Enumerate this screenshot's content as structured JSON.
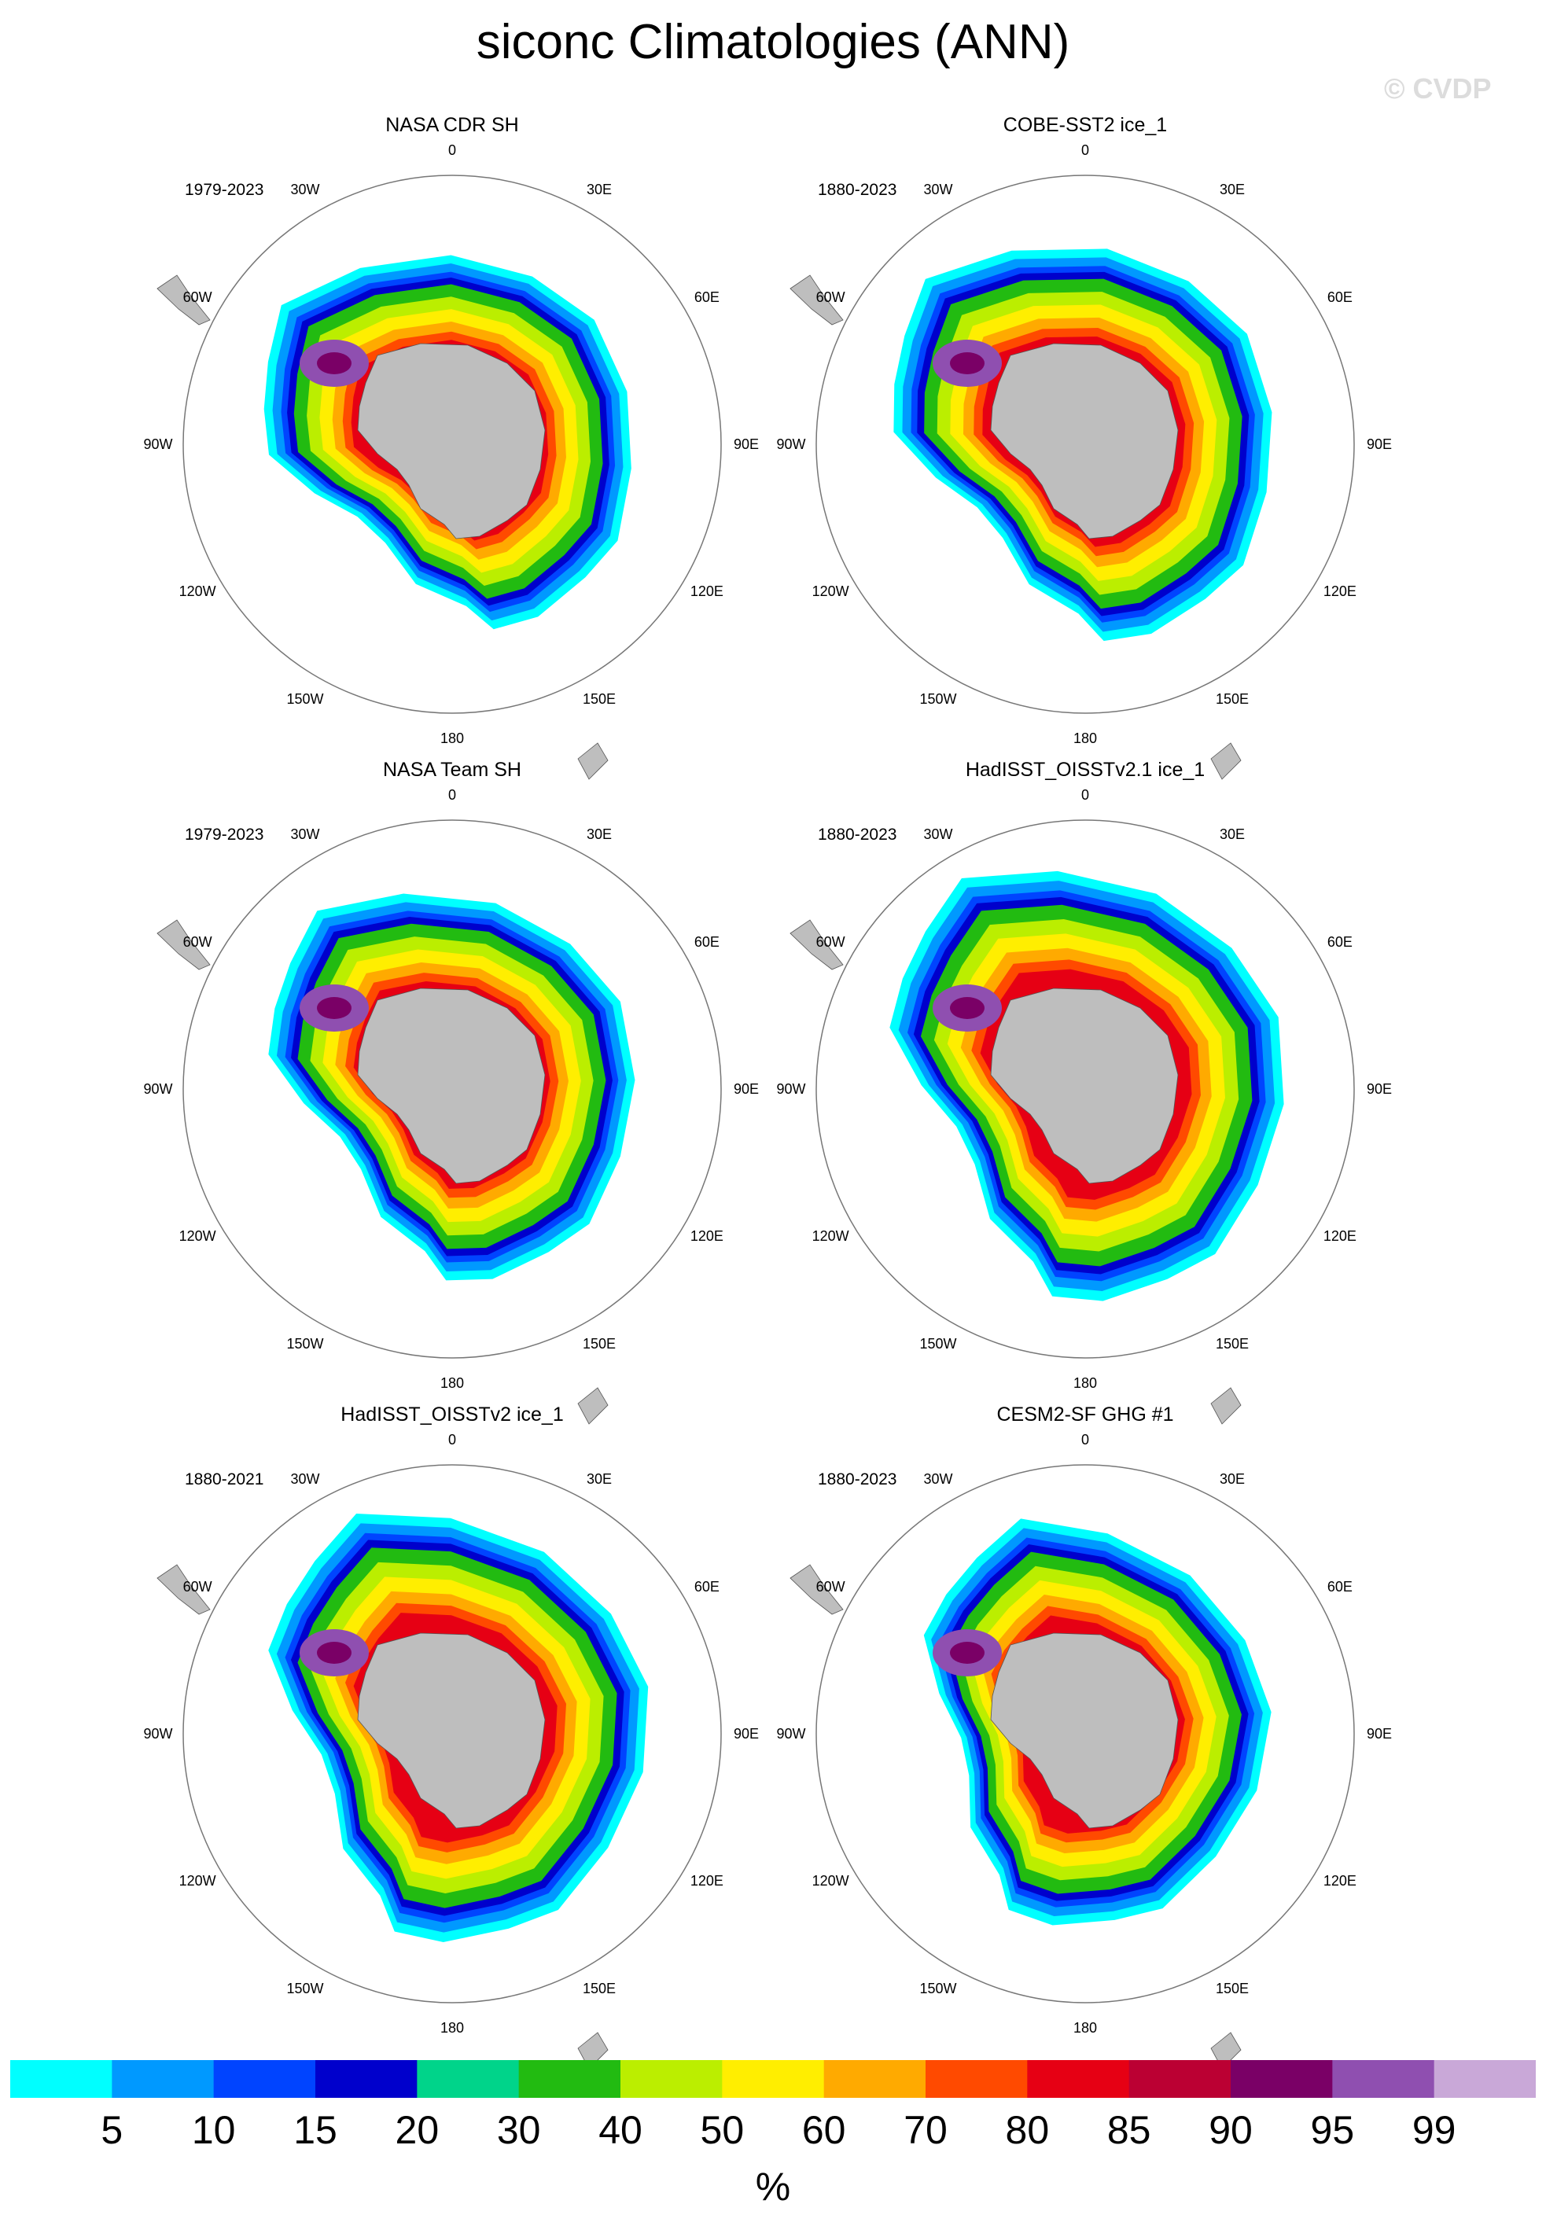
{
  "title": "siconc Climatologies (ANN)",
  "watermark": "© CVDP",
  "chart_data": {
    "type": "polar-map",
    "variable": "siconc",
    "season": "ANN",
    "projection": "south-polar-stereographic",
    "lon_labels": [
      "0",
      "30E",
      "60E",
      "90E",
      "120E",
      "150E",
      "180",
      "150W",
      "120W",
      "90W",
      "60W",
      "30W"
    ],
    "colorbar": {
      "unit": "%",
      "labels": [
        "5",
        "10",
        "15",
        "20",
        "30",
        "40",
        "50",
        "60",
        "70",
        "80",
        "85",
        "90",
        "95",
        "99"
      ],
      "colors": [
        "#00ffff",
        "#0099ff",
        "#0044ff",
        "#0000cc",
        "#00d48a",
        "#22bb11",
        "#bbee00",
        "#ffee00",
        "#ffaa00",
        "#ff4a00",
        "#e60014",
        "#bb0033",
        "#7a0066",
        "#8f4fb0",
        "#c9a8d8"
      ]
    },
    "panels": [
      {
        "title": "NASA CDR SH",
        "period": "1979-2023",
        "edge": 1.0,
        "extent": 0.96
      },
      {
        "title": "COBE-SST2 ice_1",
        "period": "1880-2023",
        "edge": 1.0,
        "extent": 1.0
      },
      {
        "title": "NASA Team SH",
        "period": "1979-2023",
        "edge": 1.0,
        "extent": 0.97
      },
      {
        "title": "HadISST_OISSTv2.1 ice_1",
        "period": "1880-2023",
        "edge": 1.0,
        "extent": 1.06
      },
      {
        "title": "HadISST_OISSTv2 ice_1",
        "period": "1880-2021",
        "edge": 1.0,
        "extent": 1.04
      },
      {
        "title": "CESM2-SF GHG #1",
        "period": "1880-2023",
        "edge": 1.0,
        "extent": 0.97
      }
    ]
  }
}
